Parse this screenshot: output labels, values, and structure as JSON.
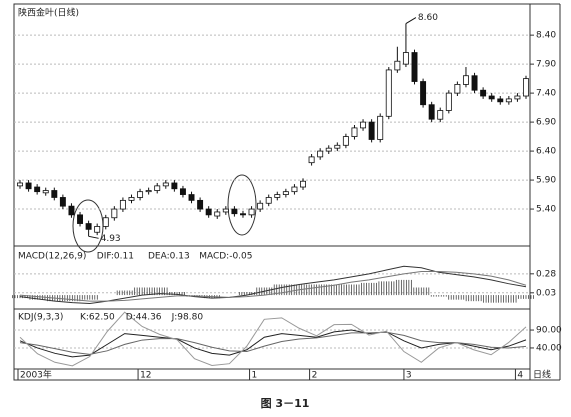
{
  "caption": "图 3－11",
  "chart_data": [
    {
      "type": "candlestick",
      "title": "陕西金叶(日线)",
      "period_label": "日线",
      "categories": [
        "2003年",
        null,
        null,
        null,
        null,
        null,
        null,
        null,
        null,
        null,
        null,
        null,
        null,
        null,
        "12",
        null,
        null,
        null,
        null,
        null,
        null,
        null,
        null,
        null,
        null,
        null,
        null,
        "1",
        null,
        null,
        null,
        null,
        null,
        null,
        "2",
        null,
        null,
        null,
        null,
        null,
        null,
        null,
        null,
        null,
        null,
        "3",
        null,
        null,
        null,
        null,
        null,
        null,
        null,
        null,
        null,
        null,
        null,
        null,
        "4",
        null
      ],
      "open": [
        5.8,
        5.85,
        5.78,
        5.68,
        5.72,
        5.6,
        5.45,
        5.3,
        5.15,
        5.0,
        5.1,
        5.25,
        5.4,
        5.55,
        5.6,
        5.7,
        5.72,
        5.8,
        5.85,
        5.75,
        5.65,
        5.55,
        5.4,
        5.28,
        5.35,
        5.4,
        5.32,
        5.3,
        5.4,
        5.5,
        5.6,
        5.65,
        5.7,
        5.78,
        6.2,
        6.3,
        6.4,
        6.45,
        6.5,
        6.65,
        6.8,
        6.9,
        6.6,
        7.0,
        7.8,
        7.9,
        8.1,
        7.6,
        7.2,
        6.95,
        7.1,
        7.4,
        7.55,
        7.7,
        7.45,
        7.35,
        7.3,
        7.25,
        7.3,
        7.35
      ],
      "high": [
        5.9,
        5.9,
        5.83,
        5.77,
        5.77,
        5.65,
        5.5,
        5.35,
        5.2,
        5.15,
        5.3,
        5.45,
        5.6,
        5.65,
        5.75,
        5.77,
        5.85,
        5.9,
        5.9,
        5.8,
        5.7,
        5.6,
        5.45,
        5.4,
        5.45,
        5.45,
        5.37,
        5.45,
        5.55,
        5.65,
        5.7,
        5.75,
        5.83,
        5.93,
        6.35,
        6.45,
        6.5,
        6.55,
        6.7,
        6.85,
        6.95,
        6.95,
        7.05,
        7.85,
        8.2,
        8.6,
        8.15,
        7.65,
        7.25,
        7.15,
        7.45,
        7.6,
        7.85,
        7.75,
        7.5,
        7.4,
        7.35,
        7.35,
        7.4,
        7.7
      ],
      "low": [
        5.75,
        5.7,
        5.65,
        5.63,
        5.55,
        5.4,
        5.25,
        5.1,
        4.93,
        4.95,
        5.05,
        5.2,
        5.35,
        5.5,
        5.55,
        5.65,
        5.67,
        5.75,
        5.7,
        5.6,
        5.5,
        5.35,
        5.25,
        5.23,
        5.3,
        5.27,
        5.25,
        5.25,
        5.35,
        5.45,
        5.55,
        5.6,
        5.65,
        5.73,
        6.15,
        6.25,
        6.35,
        6.4,
        6.45,
        6.6,
        6.75,
        6.55,
        6.55,
        6.95,
        7.75,
        7.85,
        7.55,
        7.15,
        6.9,
        6.9,
        7.05,
        7.35,
        7.5,
        7.4,
        7.3,
        7.25,
        7.2,
        7.2,
        7.25,
        7.3
      ],
      "close": [
        5.85,
        5.75,
        5.7,
        5.72,
        5.6,
        5.45,
        5.3,
        5.15,
        5.05,
        5.1,
        5.25,
        5.4,
        5.55,
        5.6,
        5.7,
        5.72,
        5.8,
        5.85,
        5.75,
        5.65,
        5.55,
        5.4,
        5.3,
        5.35,
        5.4,
        5.32,
        5.3,
        5.4,
        5.5,
        5.6,
        5.65,
        5.7,
        5.78,
        5.88,
        6.3,
        6.4,
        6.45,
        6.5,
        6.65,
        6.8,
        6.9,
        6.6,
        7.0,
        7.8,
        7.95,
        8.1,
        7.6,
        7.2,
        6.95,
        7.1,
        7.4,
        7.55,
        7.7,
        7.45,
        7.35,
        7.3,
        7.25,
        7.3,
        7.35,
        7.65
      ],
      "annotations": [
        {
          "text": "8.60",
          "index": 45,
          "value": 8.6
        },
        {
          "text": "4.93",
          "index": 8,
          "value": 4.93
        }
      ],
      "ylim": [
        4.78,
        8.92
      ],
      "yticks": [
        {
          "value": 5.4,
          "label": "5.40"
        },
        {
          "value": 5.9,
          "label": "5.90"
        },
        {
          "value": 6.4,
          "label": "6.40"
        },
        {
          "value": 6.9,
          "label": "6.90"
        },
        {
          "value": 7.4,
          "label": "7.40"
        },
        {
          "value": 7.9,
          "label": "7.90"
        },
        {
          "value": 8.4,
          "label": "8.40"
        }
      ],
      "grid": true,
      "up_color": "#ffffff",
      "down_color": "#111111"
    },
    {
      "type": "macd",
      "title": "MACD(12,26,9)",
      "series": [
        {
          "name": "DIF:0.11",
          "color": "#333333",
          "values": [
            -0.02,
            -0.05,
            -0.08,
            -0.1,
            -0.11,
            -0.08,
            -0.04,
            0.0,
            0.02,
            0.01,
            -0.02,
            -0.04,
            -0.03,
            0.0,
            0.05,
            0.1,
            0.14,
            0.17,
            0.2,
            0.24,
            0.28,
            0.33,
            0.38,
            0.36,
            0.3,
            0.27,
            0.24,
            0.2,
            0.15,
            0.11
          ]
        },
        {
          "name": "DEA:0.13",
          "color": "#777777",
          "values": [
            0.0,
            -0.02,
            -0.04,
            -0.06,
            -0.08,
            -0.08,
            -0.07,
            -0.05,
            -0.03,
            -0.01,
            -0.01,
            -0.02,
            -0.03,
            -0.02,
            0.0,
            0.03,
            0.07,
            0.1,
            0.13,
            0.17,
            0.2,
            0.24,
            0.28,
            0.31,
            0.31,
            0.3,
            0.28,
            0.25,
            0.2,
            0.13
          ]
        },
        {
          "name": "MACD:-0.05",
          "color": "#444444",
          "values": [
            -0.04,
            -0.06,
            -0.08,
            -0.08,
            -0.06,
            0.0,
            0.06,
            0.1,
            0.1,
            0.04,
            -0.02,
            -0.04,
            0.0,
            0.04,
            0.1,
            0.14,
            0.14,
            0.14,
            0.14,
            0.14,
            0.16,
            0.18,
            0.2,
            0.1,
            -0.02,
            -0.06,
            -0.08,
            -0.1,
            -0.1,
            -0.05
          ]
        }
      ],
      "ylim": [
        -0.17,
        0.62
      ],
      "yticks": [
        0.03,
        0.28
      ],
      "grid": true
    },
    {
      "type": "line",
      "title": "KDJ(9,3,3)",
      "series": [
        {
          "name": "K:62.50",
          "color": "#222222",
          "values": [
            60,
            40,
            25,
            15,
            20,
            50,
            80,
            75,
            70,
            65,
            40,
            25,
            20,
            35,
            70,
            80,
            75,
            70,
            85,
            90,
            80,
            85,
            60,
            40,
            50,
            55,
            45,
            35,
            45,
            62.5
          ]
        },
        {
          "name": "D:44.36",
          "color": "#666666",
          "values": [
            55,
            48,
            38,
            28,
            22,
            32,
            50,
            62,
            66,
            66,
            55,
            42,
            32,
            30,
            45,
            58,
            65,
            68,
            75,
            82,
            82,
            84,
            75,
            60,
            55,
            55,
            50,
            42,
            40,
            44.36
          ]
        },
        {
          "name": "J:98.80",
          "color": "#999999",
          "values": [
            70,
            24,
            0,
            -10,
            16,
            86,
            140,
            100,
            78,
            63,
            10,
            -9,
            -4,
            45,
            120,
            124,
            95,
            74,
            105,
            106,
            76,
            87,
            30,
            0,
            40,
            55,
            35,
            21,
            55,
            98.8
          ]
        }
      ],
      "ylim": [
        -16,
        146
      ],
      "yticks": [
        {
          "value": 40,
          "label": "40.00"
        },
        {
          "value": 90,
          "label": "90.00"
        }
      ],
      "grid": true
    }
  ]
}
